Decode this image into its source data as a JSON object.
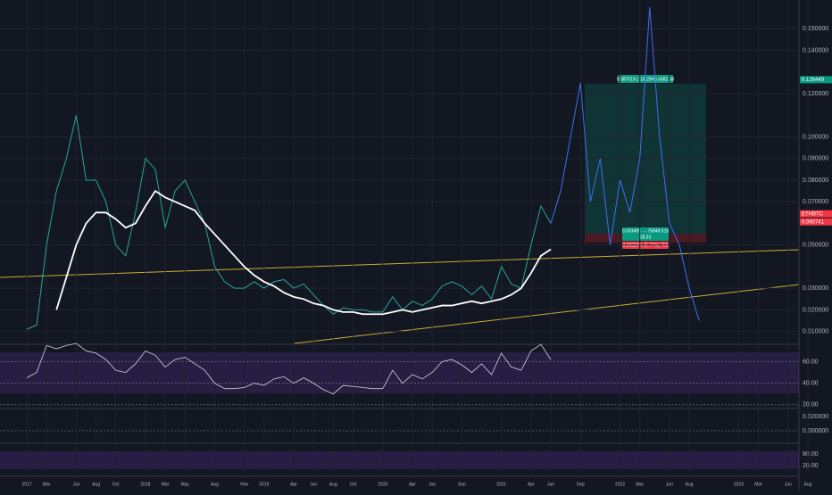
{
  "chart_data": {
    "type": "line",
    "categories": [
      "2017",
      null,
      "Mar",
      null,
      null,
      "Jun",
      null,
      "Aug",
      null,
      "Oct",
      null,
      null,
      "2018",
      null,
      "Mar",
      null,
      "May",
      null,
      null,
      "Aug",
      null,
      null,
      "Nov",
      null,
      "2019",
      null,
      null,
      "Apr",
      null,
      "Jun",
      null,
      "Aug",
      null,
      "Oct",
      null,
      null,
      "2020",
      null,
      null,
      "Apr",
      null,
      "Jun",
      null,
      null,
      "Sep",
      null,
      null,
      null,
      "2021",
      null,
      null,
      "Apr",
      null,
      "Jun",
      null,
      null,
      "Sep",
      null,
      null,
      null,
      "2022",
      null,
      "Mar",
      null,
      null,
      "Jun",
      null,
      "Aug",
      null,
      null,
      null,
      null,
      "2023",
      null,
      "Mar",
      null,
      null,
      "Jun",
      null,
      "Aug"
    ],
    "series": [
      {
        "color": "#26a69a",
        "values": [
          0.011,
          0.013,
          0.05,
          0.075,
          0.09,
          0.11,
          0.08,
          0.08,
          0.07,
          0.05,
          0.045,
          0.065,
          0.09,
          0.085,
          0.058,
          0.075,
          0.08,
          0.07,
          0.06,
          0.04,
          0.033,
          0.03,
          0.03,
          0.033,
          0.03,
          0.033,
          0.034,
          0.03,
          0.032,
          0.027,
          0.022,
          0.018,
          0.021,
          0.02,
          0.02,
          0.019,
          0.019,
          0.026,
          0.02,
          0.024,
          0.022,
          0.025,
          0.031,
          0.033,
          0.031,
          0.027,
          0.031,
          0.025,
          0.04,
          0.032,
          0.03,
          0.05,
          0.068,
          0.06,
          null,
          null,
          null,
          null,
          null,
          null,
          null,
          null,
          null,
          null,
          null,
          null,
          null,
          null,
          null,
          null,
          null,
          null,
          null,
          null,
          null,
          null,
          null,
          null,
          null,
          null
        ]
      },
      {
        "color": "#ffffff",
        "values": [
          null,
          null,
          null,
          0.02,
          0.035,
          0.05,
          0.06,
          0.065,
          0.065,
          0.062,
          0.058,
          0.06,
          0.068,
          0.075,
          0.072,
          0.07,
          0.068,
          0.066,
          0.06,
          0.055,
          0.05,
          0.045,
          0.04,
          0.036,
          0.033,
          0.031,
          0.028,
          0.026,
          0.025,
          0.023,
          0.022,
          0.02,
          0.019,
          0.019,
          0.018,
          0.018,
          0.018,
          0.019,
          0.02,
          0.019,
          0.02,
          0.021,
          0.022,
          0.022,
          0.023,
          0.024,
          0.023,
          0.024,
          0.025,
          0.027,
          0.03,
          0.037,
          0.045,
          0.048,
          null,
          null,
          null,
          null,
          null,
          null,
          null,
          null,
          null,
          null,
          null,
          null,
          null,
          null,
          null,
          null,
          null,
          null,
          null,
          null,
          null,
          null,
          null,
          null,
          null,
          null
        ]
      },
      {
        "color": "#3d6ff0",
        "values": [
          null,
          null,
          null,
          null,
          null,
          null,
          null,
          null,
          null,
          null,
          null,
          null,
          null,
          null,
          null,
          null,
          null,
          null,
          null,
          null,
          null,
          null,
          null,
          null,
          null,
          null,
          null,
          null,
          null,
          null,
          null,
          null,
          null,
          null,
          null,
          null,
          null,
          null,
          null,
          null,
          null,
          null,
          null,
          null,
          null,
          null,
          null,
          null,
          null,
          null,
          null,
          null,
          null,
          0.06,
          0.075,
          0.1,
          0.125,
          0.07,
          0.09,
          0.05,
          0.08,
          0.065,
          0.09,
          0.16,
          0.1,
          0.06,
          0.05,
          0.03,
          0.015,
          null,
          null,
          null,
          null,
          null,
          null,
          null,
          null,
          null,
          null,
          null
        ]
      }
    ],
    "ylim": [
      0.0045,
      0.16
    ],
    "yticks": [
      {
        "value": 0.01,
        "label": "0.010000"
      },
      {
        "value": 0.02,
        "label": "0.020000"
      },
      {
        "value": 0.03,
        "label": "0.030000"
      },
      {
        "value": 0.05,
        "label": "0.050000"
      },
      {
        "value": 0.07,
        "label": "0.070000"
      },
      {
        "value": 0.08,
        "label": "0.080000"
      },
      {
        "value": 0.09,
        "label": "0.090000"
      },
      {
        "value": 0.1,
        "label": "0.100000"
      },
      {
        "value": 0.12,
        "label": "0.120000"
      },
      {
        "value": 0.14,
        "label": "0.140000"
      },
      {
        "value": 0.15,
        "label": "0.150000"
      }
    ],
    "grid": true,
    "price_tags": [
      {
        "value": 0.126449,
        "label": "0.126449",
        "color": "#089981"
      },
      {
        "value": 0.0607,
        "label": "0.060741",
        "color": "#f23645"
      }
    ],
    "symbol": "ETHBTC",
    "position_labels": [
      "0.087019 (116.29%) 6082.98",
      "0.003499 → 75849.515",
      "28.33",
      "0.00229% (5.77%) 755"
    ],
    "rsi": {
      "values": [
        45,
        50,
        75,
        72,
        75,
        77,
        70,
        68,
        62,
        52,
        50,
        58,
        70,
        66,
        55,
        62,
        64,
        58,
        52,
        40,
        35,
        35,
        36,
        40,
        38,
        44,
        46,
        40,
        45,
        40,
        34,
        30,
        38,
        37,
        36,
        35,
        35,
        52,
        40,
        48,
        44,
        50,
        60,
        62,
        57,
        50,
        58,
        48,
        68,
        55,
        52,
        70,
        76,
        62,
        null,
        null,
        null,
        null,
        null,
        null,
        null,
        null,
        null,
        null,
        null,
        null,
        null,
        null,
        null,
        null,
        null,
        null,
        null,
        null,
        null,
        null,
        null,
        null,
        null,
        null
      ],
      "color": "#d1d4dc",
      "ylim": [
        19,
        77
      ],
      "yticks": [
        {
          "value": 60,
          "label": "60.00"
        },
        {
          "value": 40,
          "label": "40.00"
        },
        {
          "value": 20,
          "label": "20.00"
        }
      ]
    },
    "macd_labels": [
      "0.020000",
      "0.000000"
    ],
    "stoch_labels": [
      "80.00",
      "20.00"
    ]
  }
}
